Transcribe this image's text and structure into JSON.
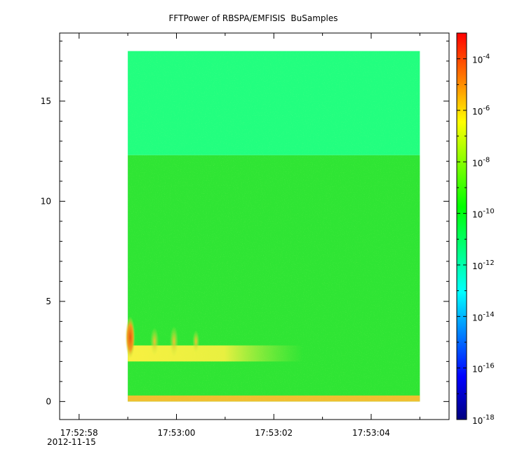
{
  "chart_data": {
    "type": "heatmap",
    "title": "FFTPower of RBSPA/EMFISIS  BuSamples",
    "xlabel": "",
    "ylabel": "",
    "x_tick_labels": [
      "17:52:58",
      "17:53:00",
      "17:53:02",
      "17:53:04"
    ],
    "x_tick_sublabel": "2012-11-15",
    "x_range_seconds_after_17_52_58": [
      -0.4,
      7.6
    ],
    "data_time_range_seconds_after_17_52_58": [
      1.0,
      7.0
    ],
    "y_ticks": [
      0,
      5,
      10,
      15
    ],
    "y_tick_labels": [
      "0",
      "5",
      "10",
      "15"
    ],
    "ylim": [
      -0.9,
      18.4
    ],
    "colorbar": {
      "scale": "log",
      "range": [
        1e-18,
        0.001
      ],
      "tick_exponents": [
        -4,
        -6,
        -8,
        -10,
        -12,
        -14,
        -16,
        -18
      ],
      "tick_base": "10",
      "colormap": "rainbow",
      "colors": [
        "#00007f",
        "#0000ff",
        "#007fff",
        "#00ffff",
        "#00ff7f",
        "#00ff00",
        "#7fff00",
        "#ffff00",
        "#ff7f00",
        "#ff0000"
      ]
    },
    "bands": [
      {
        "y_range": [
          12.3,
          17.5
        ],
        "level": "1e-12",
        "color": "#22ff7f"
      },
      {
        "y_range": [
          0.0,
          12.3
        ],
        "level": "1e-11",
        "color": "#2fe534"
      },
      {
        "y_range": [
          2.0,
          2.8
        ],
        "level": "1e-9",
        "color": "#c8f040",
        "note_time_range": [
          1.0,
          4.6
        ]
      },
      {
        "y_range": [
          0.0,
          0.3
        ],
        "level": "1e-7",
        "color": "#f0c030"
      }
    ],
    "grid": false
  }
}
